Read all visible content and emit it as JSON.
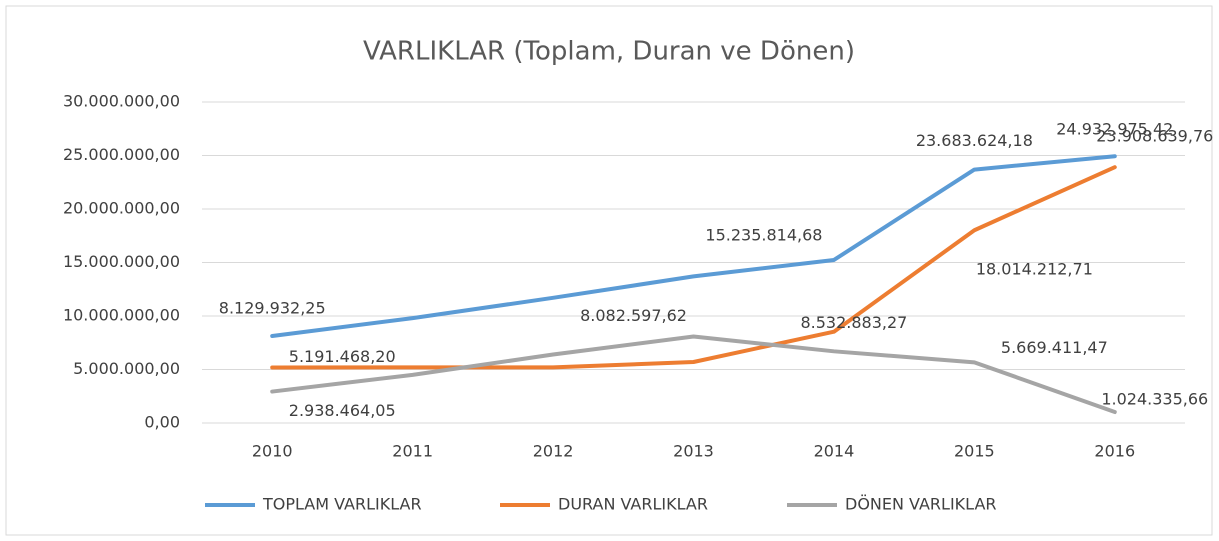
{
  "chart_data": {
    "type": "line",
    "title": "VARLIKLAR (Toplam, Duran ve Dönen)",
    "categories": [
      "2010",
      "2011",
      "2012",
      "2013",
      "2014",
      "2015",
      "2016"
    ],
    "series": [
      {
        "name": "TOPLAM VARLIKLAR",
        "color": "#5b9bd5",
        "values": [
          8129932.25,
          9800000,
          11700000,
          13700000,
          15235814.68,
          23683624.18,
          24932975.42
        ],
        "value_labels": [
          "8.129.932,25",
          null,
          null,
          null,
          "15.235.814,68",
          "23.683.624,18",
          "24.932.975,42"
        ]
      },
      {
        "name": "DURAN VARLIKLAR",
        "color": "#ed7d31",
        "values": [
          5191468.2,
          5200000,
          5200000,
          5700000,
          8532883.27,
          18014212.71,
          23908639.76
        ],
        "value_labels": [
          "5.191.468,20",
          null,
          null,
          null,
          "8.532.883,27",
          "18.014.212,71",
          "23.908.639,76"
        ]
      },
      {
        "name": "DÖNEN VARLIKLAR",
        "color": "#a5a5a5",
        "values": [
          2938464.05,
          4500000,
          6400000,
          8082597.62,
          6700000,
          5669411.47,
          1024335.66
        ],
        "value_labels": [
          "2.938.464,05",
          null,
          null,
          "8.082.597,62",
          null,
          "5.669.411,47",
          "1.024.335,66"
        ]
      }
    ],
    "ylim": [
      0,
      30000000
    ],
    "yticks": [
      {
        "value": 0,
        "label": "0,00"
      },
      {
        "value": 5000000,
        "label": "5.000.000,00"
      },
      {
        "value": 10000000,
        "label": "10.000.000,00"
      },
      {
        "value": 15000000,
        "label": "15.000.000,00"
      },
      {
        "value": 20000000,
        "label": "20.000.000,00"
      },
      {
        "value": 25000000,
        "label": "25.000.000,00"
      },
      {
        "value": 30000000,
        "label": "30.000.000,00"
      }
    ],
    "grid": true,
    "legend": "bottom"
  }
}
